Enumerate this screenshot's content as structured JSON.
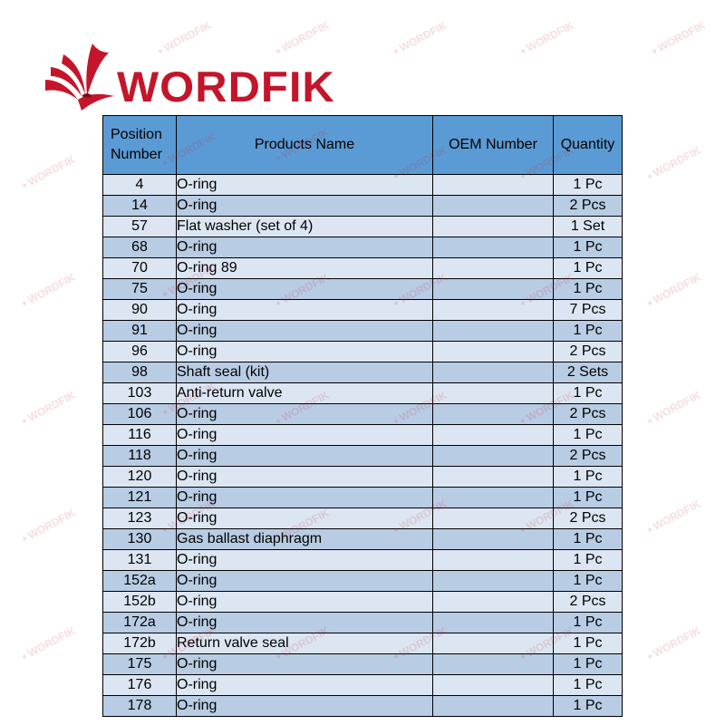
{
  "brand": {
    "name": "WORDFIK",
    "color": "#c4152a",
    "logo_icon": "swallow-bird-icon"
  },
  "watermark": {
    "text": "WORDFIK"
  },
  "table": {
    "headers": {
      "position": "Position Number",
      "name": "Products Name",
      "oem": "OEM Number",
      "quantity": "Quantity"
    },
    "header_color": "#5b9bd5",
    "row_colors": [
      "#dce6f2",
      "#b8cce4"
    ],
    "rows": [
      {
        "position": "4",
        "name": "O-ring",
        "oem": "",
        "quantity": "1 Pc"
      },
      {
        "position": "14",
        "name": "O-ring",
        "oem": "",
        "quantity": "2 Pcs"
      },
      {
        "position": "57",
        "name": "Flat washer (set of 4)",
        "oem": "",
        "quantity": "1 Set"
      },
      {
        "position": "68",
        "name": "O-ring",
        "oem": "",
        "quantity": "1 Pc"
      },
      {
        "position": "70",
        "name": "O-ring 89",
        "oem": "",
        "quantity": "1 Pc"
      },
      {
        "position": "75",
        "name": "O-ring",
        "oem": "",
        "quantity": "1 Pc"
      },
      {
        "position": "90",
        "name": "O-ring",
        "oem": "",
        "quantity": "7 Pcs"
      },
      {
        "position": "91",
        "name": "O-ring",
        "oem": "",
        "quantity": "1 Pc"
      },
      {
        "position": "96",
        "name": "O-ring",
        "oem": "",
        "quantity": "2 Pcs"
      },
      {
        "position": "98",
        "name": "Shaft seal (kit)",
        "oem": "",
        "quantity": "2 Sets"
      },
      {
        "position": "103",
        "name": "Anti-return valve",
        "oem": "",
        "quantity": "1 Pc"
      },
      {
        "position": "106",
        "name": "O-ring",
        "oem": "",
        "quantity": "2 Pcs"
      },
      {
        "position": "116",
        "name": "O-ring",
        "oem": "",
        "quantity": "1 Pc"
      },
      {
        "position": "118",
        "name": "O-ring",
        "oem": "",
        "quantity": "2 Pcs"
      },
      {
        "position": "120",
        "name": "O-ring",
        "oem": "",
        "quantity": "1 Pc"
      },
      {
        "position": "121",
        "name": "O-ring",
        "oem": "",
        "quantity": "1 Pc"
      },
      {
        "position": "123",
        "name": "O-ring",
        "oem": "",
        "quantity": "2 Pcs"
      },
      {
        "position": "130",
        "name": "Gas ballast diaphragm",
        "oem": "",
        "quantity": "1 Pc"
      },
      {
        "position": "131",
        "name": "O-ring",
        "oem": "",
        "quantity": "1 Pc"
      },
      {
        "position": "152a",
        "name": "O-ring",
        "oem": "",
        "quantity": "1 Pc"
      },
      {
        "position": "152b",
        "name": "O-ring",
        "oem": "",
        "quantity": "2 Pcs"
      },
      {
        "position": "172a",
        "name": "O-ring",
        "oem": "",
        "quantity": "1 Pc"
      },
      {
        "position": "172b",
        "name": "Return valve seal",
        "oem": "",
        "quantity": "1 Pc"
      },
      {
        "position": "175",
        "name": "O-ring",
        "oem": "",
        "quantity": "1 Pc"
      },
      {
        "position": "176",
        "name": "O-ring",
        "oem": "",
        "quantity": "1 Pc"
      },
      {
        "position": "178",
        "name": "O-ring",
        "oem": "",
        "quantity": "1 Pc"
      }
    ]
  }
}
